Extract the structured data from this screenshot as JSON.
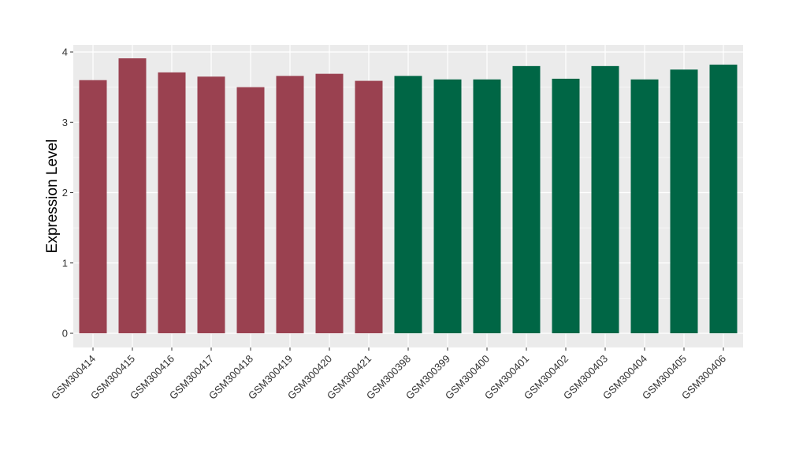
{
  "chart_data": {
    "type": "bar",
    "title": "",
    "xlabel": "",
    "ylabel": "Expression Level",
    "ylim": [
      0,
      4.1
    ],
    "yticks": [
      0,
      1,
      2,
      3,
      4
    ],
    "grid": true,
    "legend": "none",
    "categories": [
      "GSM300414",
      "GSM300415",
      "GSM300416",
      "GSM300417",
      "GSM300418",
      "GSM300419",
      "GSM300420",
      "GSM300421",
      "GSM300398",
      "GSM300399",
      "GSM300400",
      "GSM300401",
      "GSM300402",
      "GSM300403",
      "GSM300404",
      "GSM300405",
      "GSM300406"
    ],
    "values": [
      3.6,
      3.91,
      3.71,
      3.65,
      3.5,
      3.66,
      3.69,
      3.59,
      3.66,
      3.61,
      3.61,
      3.8,
      3.62,
      3.8,
      3.61,
      3.75,
      3.82
    ],
    "group": [
      0,
      0,
      0,
      0,
      0,
      0,
      0,
      0,
      1,
      1,
      1,
      1,
      1,
      1,
      1,
      1,
      1
    ],
    "colors": [
      "#9a4150",
      "#006645"
    ],
    "panel_background": "#ebebeb",
    "gridline_color": "#ffffff"
  }
}
